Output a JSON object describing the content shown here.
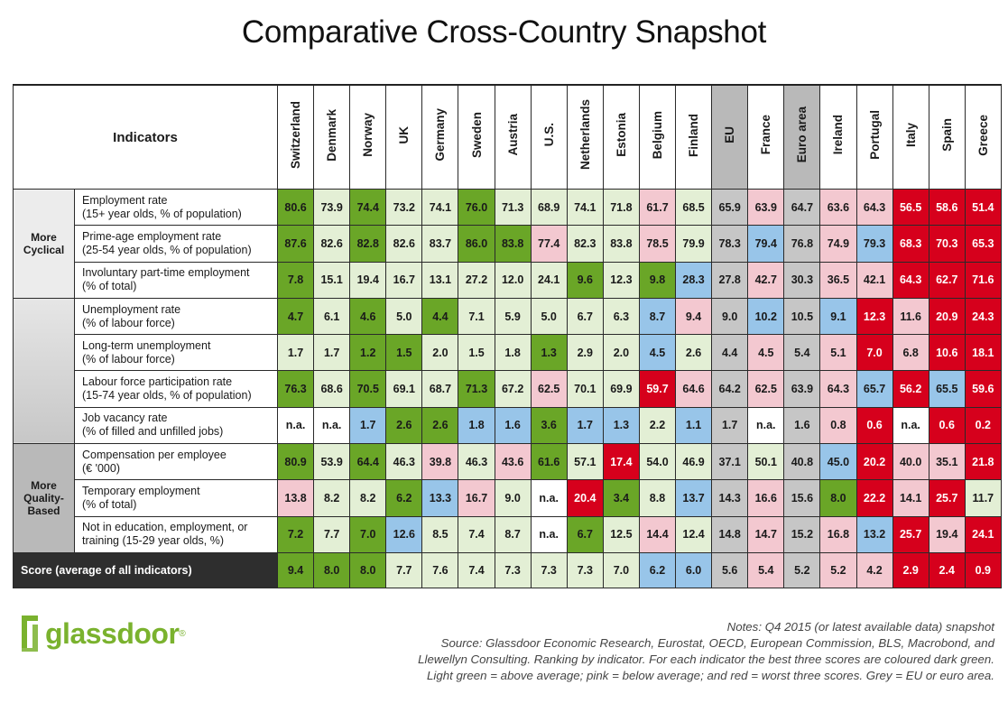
{
  "title": "Comparative Cross-Country Snapshot",
  "header": {
    "indicators_label": "Indicators"
  },
  "colors": {
    "dark_green": "#6aa627",
    "light_green": "#e3efd5",
    "pink": "#f3c8d0",
    "red": "#d6001c",
    "blue": "#98c5e9",
    "grey": "#c6c6c6",
    "white": "#ffffff",
    "score_bg": "#2e2e2e"
  },
  "groups": {
    "cyclical": "More Cyclical",
    "quality": "More Quality-Based"
  },
  "chart_data": {
    "type": "table",
    "title": "Comparative Cross-Country Snapshot",
    "countries": [
      "Switzerland",
      "Denmark",
      "Norway",
      "UK",
      "Germany",
      "Sweden",
      "Austria",
      "U.S.",
      "Netherlands",
      "Estonia",
      "Belgium",
      "Finland",
      "EU",
      "France",
      "Euro area",
      "Ireland",
      "Portugal",
      "Italy",
      "Spain",
      "Greece"
    ],
    "grey_columns": [
      "EU",
      "Euro area"
    ],
    "rows": [
      {
        "line1": "Employment rate",
        "line2": "(15+ year olds, % of population)",
        "values": [
          "80.6",
          "73.9",
          "74.4",
          "73.2",
          "74.1",
          "76.0",
          "71.3",
          "68.9",
          "74.1",
          "71.8",
          "61.7",
          "68.5",
          "65.9",
          "63.9",
          "64.7",
          "63.6",
          "64.3",
          "56.5",
          "58.6",
          "51.4"
        ],
        "colors": [
          "G",
          "L",
          "G",
          "L",
          "L",
          "G",
          "L",
          "L",
          "L",
          "L",
          "P",
          "L",
          "Y",
          "P",
          "Y",
          "P",
          "P",
          "R",
          "R",
          "R"
        ]
      },
      {
        "line1": "Prime-age employment rate",
        "line2": "(25-54 year olds, % of population)",
        "values": [
          "87.6",
          "82.6",
          "82.8",
          "82.6",
          "83.7",
          "86.0",
          "83.8",
          "77.4",
          "82.3",
          "83.8",
          "78.5",
          "79.9",
          "78.3",
          "79.4",
          "76.8",
          "74.9",
          "79.3",
          "68.3",
          "70.3",
          "65.3"
        ],
        "colors": [
          "G",
          "L",
          "G",
          "L",
          "L",
          "G",
          "G",
          "P",
          "L",
          "L",
          "P",
          "L",
          "Y",
          "B",
          "Y",
          "P",
          "B",
          "R",
          "R",
          "R"
        ]
      },
      {
        "line1": "Involuntary part-time employment",
        "line2": "(% of total)",
        "values": [
          "7.8",
          "15.1",
          "19.4",
          "16.7",
          "13.1",
          "27.2",
          "12.0",
          "24.1",
          "9.6",
          "12.3",
          "9.8",
          "28.3",
          "27.8",
          "42.7",
          "30.3",
          "36.5",
          "42.1",
          "64.3",
          "62.7",
          "71.6"
        ],
        "colors": [
          "G",
          "L",
          "L",
          "L",
          "L",
          "L",
          "L",
          "L",
          "G",
          "L",
          "G",
          "B",
          "Y",
          "P",
          "Y",
          "P",
          "P",
          "R",
          "R",
          "R"
        ]
      },
      {
        "line1": "Unemployment rate",
        "line2": "(% of labour force)",
        "values": [
          "4.7",
          "6.1",
          "4.6",
          "5.0",
          "4.4",
          "7.1",
          "5.9",
          "5.0",
          "6.7",
          "6.3",
          "8.7",
          "9.4",
          "9.0",
          "10.2",
          "10.5",
          "9.1",
          "12.3",
          "11.6",
          "20.9",
          "24.3"
        ],
        "colors": [
          "G",
          "L",
          "G",
          "L",
          "G",
          "L",
          "L",
          "L",
          "L",
          "L",
          "B",
          "P",
          "Y",
          "B",
          "Y",
          "B",
          "R",
          "P",
          "R",
          "R"
        ]
      },
      {
        "line1": "Long-term unemployment",
        "line2": "(% of labour force)",
        "values": [
          "1.7",
          "1.7",
          "1.2",
          "1.5",
          "2.0",
          "1.5",
          "1.8",
          "1.3",
          "2.9",
          "2.0",
          "4.5",
          "2.6",
          "4.4",
          "4.5",
          "5.4",
          "5.1",
          "7.0",
          "6.8",
          "10.6",
          "18.1"
        ],
        "colors": [
          "L",
          "L",
          "G",
          "G",
          "L",
          "L",
          "L",
          "G",
          "L",
          "L",
          "B",
          "L",
          "Y",
          "P",
          "Y",
          "P",
          "R",
          "P",
          "R",
          "R"
        ]
      },
      {
        "line1": "Labour force participation rate",
        "line2": "(15-74 year olds, % of population)",
        "values": [
          "76.3",
          "68.6",
          "70.5",
          "69.1",
          "68.7",
          "71.3",
          "67.2",
          "62.5",
          "70.1",
          "69.9",
          "59.7",
          "64.6",
          "64.2",
          "62.5",
          "63.9",
          "64.3",
          "65.7",
          "56.2",
          "65.5",
          "59.6"
        ],
        "colors": [
          "G",
          "L",
          "G",
          "L",
          "L",
          "G",
          "L",
          "P",
          "L",
          "L",
          "R",
          "P",
          "Y",
          "P",
          "Y",
          "P",
          "B",
          "R",
          "B",
          "R"
        ]
      },
      {
        "line1": "Job vacancy rate",
        "line2": "(% of filled and unfilled jobs)",
        "values": [
          "n.a.",
          "n.a.",
          "1.7",
          "2.6",
          "2.6",
          "1.8",
          "1.6",
          "3.6",
          "1.7",
          "1.3",
          "2.2",
          "1.1",
          "1.7",
          "n.a.",
          "1.6",
          "0.8",
          "0.6",
          "n.a.",
          "0.6",
          "0.2"
        ],
        "colors": [
          "W",
          "W",
          "B",
          "G",
          "G",
          "B",
          "B",
          "G",
          "B",
          "B",
          "L",
          "B",
          "Y",
          "W",
          "Y",
          "P",
          "R",
          "W",
          "R",
          "R"
        ]
      },
      {
        "line1": "Compensation per employee",
        "line2": "(€ '000)",
        "values": [
          "80.9",
          "53.9",
          "64.4",
          "46.3",
          "39.8",
          "46.3",
          "43.6",
          "61.6",
          "57.1",
          "17.4",
          "54.0",
          "46.9",
          "37.1",
          "50.1",
          "40.8",
          "45.0",
          "20.2",
          "40.0",
          "35.1",
          "21.8"
        ],
        "colors": [
          "G",
          "L",
          "G",
          "L",
          "P",
          "L",
          "P",
          "G",
          "L",
          "R",
          "L",
          "L",
          "Y",
          "L",
          "Y",
          "B",
          "R",
          "P",
          "P",
          "R"
        ]
      },
      {
        "line1": "Temporary employment",
        "line2": "(% of total)",
        "values": [
          "13.8",
          "8.2",
          "8.2",
          "6.2",
          "13.3",
          "16.7",
          "9.0",
          "n.a.",
          "20.4",
          "3.4",
          "8.8",
          "13.7",
          "14.3",
          "16.6",
          "15.6",
          "8.0",
          "22.2",
          "14.1",
          "25.7",
          "11.7"
        ],
        "colors": [
          "P",
          "L",
          "L",
          "G",
          "B",
          "P",
          "L",
          "W",
          "R",
          "G",
          "L",
          "B",
          "Y",
          "P",
          "Y",
          "G",
          "R",
          "P",
          "R",
          "L"
        ]
      },
      {
        "line1": "Not in education, employment, or",
        "line2": "training (15-29 year olds, %)",
        "values": [
          "7.2",
          "7.7",
          "7.0",
          "12.6",
          "8.5",
          "7.4",
          "8.7",
          "n.a.",
          "6.7",
          "12.5",
          "14.4",
          "12.4",
          "14.8",
          "14.7",
          "15.2",
          "16.8",
          "13.2",
          "25.7",
          "19.4",
          "24.1"
        ],
        "colors": [
          "G",
          "L",
          "G",
          "B",
          "L",
          "L",
          "L",
          "W",
          "G",
          "L",
          "P",
          "L",
          "Y",
          "P",
          "Y",
          "P",
          "B",
          "R",
          "P",
          "R"
        ]
      }
    ],
    "score": {
      "label": "Score (average of all indicators)",
      "values": [
        "9.4",
        "8.0",
        "8.0",
        "7.7",
        "7.6",
        "7.4",
        "7.3",
        "7.3",
        "7.3",
        "7.0",
        "6.2",
        "6.0",
        "5.6",
        "5.4",
        "5.2",
        "5.2",
        "4.2",
        "2.9",
        "2.4",
        "0.9"
      ],
      "colors": [
        "G",
        "G",
        "G",
        "L",
        "L",
        "L",
        "L",
        "L",
        "L",
        "L",
        "B",
        "B",
        "Y",
        "P",
        "Y",
        "P",
        "P",
        "R",
        "R",
        "R"
      ]
    }
  },
  "footer": {
    "logo_text": "glassdoor",
    "logo_mark": "®",
    "notes": [
      "Notes: Q4 2015 (or latest available data) snapshot",
      "Source: Glassdoor Economic Research, Eurostat, OECD, European Commission, BLS, Macrobond, and",
      "Llewellyn Consulting. Ranking by indicator. For each indicator the best three scores are coloured dark green.",
      "Light green = above average; pink = below average; and red = worst three scores. Grey = EU or euro area."
    ]
  }
}
